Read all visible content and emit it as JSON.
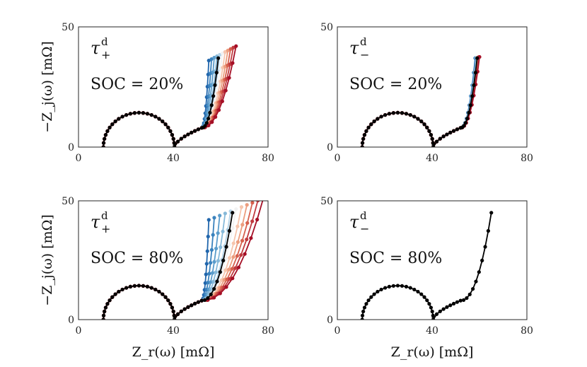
{
  "figure": {
    "ylabel": "−Z_j(ω) [mΩ]",
    "xlabel": "Z_r(ω) [mΩ]"
  },
  "chart_data": [
    {
      "type": "line",
      "annotation": {
        "symbol": "τ",
        "superscript": "d",
        "subscript": "+",
        "soc_text": "SOC = 20%"
      },
      "xlim": [
        0,
        80
      ],
      "ylim": [
        0,
        50
      ],
      "xticks": [
        "0",
        "40",
        "80"
      ],
      "yticks": [
        "0",
        "50"
      ],
      "show_xlabel": false,
      "show_ylabel": true,
      "sweep": {
        "count": 11,
        "end_x_min": 55,
        "end_x_max": 66.5,
        "end_y_min": 36,
        "end_y_max": 42,
        "colors": [
          "#2166ac",
          "#3a82bd",
          "#5a9ccb",
          "#86b9d9",
          "#b3d2e6",
          "#f2f2f2",
          "#f6c5ad",
          "#ec9d7e",
          "#d6604d",
          "#c03a3f",
          "#a50f26"
        ]
      },
      "reference": {
        "end_x": 59,
        "end_y": 37,
        "color": "#000000"
      }
    },
    {
      "type": "line",
      "annotation": {
        "symbol": "τ",
        "superscript": "d",
        "subscript": "−",
        "soc_text": "SOC = 20%"
      },
      "xlim": [
        0,
        80
      ],
      "ylim": [
        0,
        50
      ],
      "xticks": [
        "0",
        "40",
        "80"
      ],
      "yticks": [
        "0",
        "50"
      ],
      "show_xlabel": false,
      "show_ylabel": false,
      "sweep": {
        "count": 11,
        "end_x_min": 58.2,
        "end_x_max": 60,
        "end_y_min": 37,
        "end_y_max": 37.5,
        "colors": [
          "#2166ac",
          "#3a82bd",
          "#5a9ccb",
          "#86b9d9",
          "#b3d2e6",
          "#f2f2f2",
          "#f6c5ad",
          "#ec9d7e",
          "#d6604d",
          "#c03a3f",
          "#a50f26"
        ]
      },
      "reference": {
        "end_x": 59,
        "end_y": 37,
        "color": "#000000"
      }
    },
    {
      "type": "line",
      "annotation": {
        "symbol": "τ",
        "superscript": "d",
        "subscript": "+",
        "soc_text": "SOC = 80%"
      },
      "xlim": [
        0,
        80
      ],
      "ylim": [
        0,
        50
      ],
      "xticks": [
        "0",
        "40",
        "80"
      ],
      "yticks": [
        "0",
        "50"
      ],
      "show_xlabel": true,
      "show_ylabel": true,
      "sweep": {
        "count": 11,
        "end_x_min": 55,
        "end_x_max": 78,
        "end_y_min": 42,
        "end_y_max": 51,
        "colors": [
          "#2166ac",
          "#3a82bd",
          "#5a9ccb",
          "#86b9d9",
          "#b3d2e6",
          "#f2f2f2",
          "#f6c5ad",
          "#ec9d7e",
          "#d6604d",
          "#c03a3f",
          "#a50f26"
        ]
      },
      "reference": {
        "end_x": 65,
        "end_y": 45,
        "color": "#000000"
      }
    },
    {
      "type": "line",
      "annotation": {
        "symbol": "τ",
        "superscript": "d",
        "subscript": "−",
        "soc_text": "SOC = 80%"
      },
      "xlim": [
        0,
        80
      ],
      "ylim": [
        0,
        50
      ],
      "xticks": [
        "0",
        "40",
        "80"
      ],
      "yticks": [
        "0",
        "50"
      ],
      "show_xlabel": true,
      "show_ylabel": false,
      "sweep": {
        "count": 0,
        "end_x_min": 65,
        "end_x_max": 65,
        "end_y_min": 45,
        "end_y_max": 45,
        "colors": []
      },
      "reference": {
        "end_x": 65,
        "end_y": 45,
        "color": "#000000"
      }
    }
  ]
}
